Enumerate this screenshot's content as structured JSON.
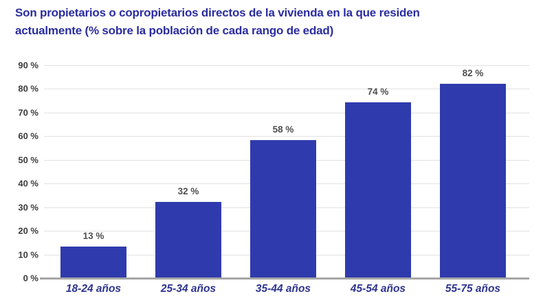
{
  "title": "Son propietarios o copropietarios directos de la vivienda en la que residen actualmente (% sobre la población de cada rango de edad)",
  "colors": {
    "bar": "#2f3bad",
    "title_text": "#2b2d9f",
    "x_axis_label_text": "#2e3490",
    "value_label_text": "#4f4f4f",
    "y_tick_text": "#3c3c3c",
    "gridline": "#e2e2e2",
    "axis_line": "#a6a6a6",
    "background": "#ffffff"
  },
  "chart_data": {
    "type": "bar",
    "title": "Son propietarios o copropietarios directos de la vivienda en la que residen actualmente (% sobre la población de cada rango de edad)",
    "categories": [
      "18-24 años",
      "25-34 años",
      "35-44 años",
      "45-54 años",
      "55-75 años"
    ],
    "values": [
      13,
      32,
      58,
      74,
      82
    ],
    "value_labels": [
      "13 %",
      "32 %",
      "58 %",
      "74 %",
      "82 %"
    ],
    "xlabel": "",
    "ylabel": "",
    "ylim": [
      0,
      90
    ],
    "ytick_step": 10,
    "ytick_labels": [
      "0 %",
      "10 %",
      "20 %",
      "30 %",
      "40 %",
      "50 %",
      "60 %",
      "70 %",
      "80 %",
      "90 %"
    ],
    "grid": true,
    "legend": false
  }
}
